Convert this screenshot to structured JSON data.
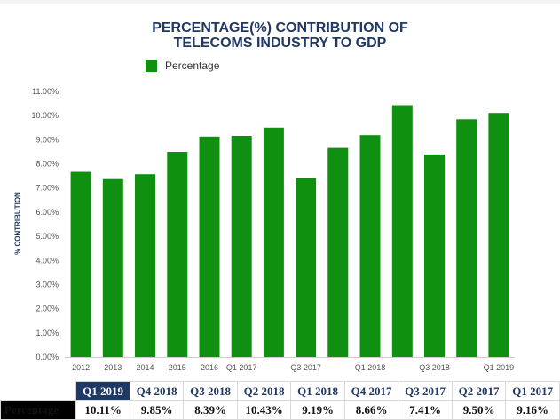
{
  "chart_data": {
    "type": "bar",
    "title_line1": "PERCENTAGE(%) CONTRIBUTION OF",
    "title_line2": "TELECOMS INDUSTRY TO GDP",
    "ylabel": "% CONTRIBUTION",
    "xlabel": "",
    "ylim": [
      0,
      11
    ],
    "y_ticks": [
      "0.00%",
      "1.00%",
      "2.00%",
      "3.00%",
      "4.00%",
      "5.00%",
      "6.00%",
      "7.00%",
      "8.00%",
      "9.00%",
      "10.00%",
      "11.00%"
    ],
    "legend_position": "top-left",
    "grid": false,
    "categories": [
      "2012",
      "2013",
      "2014",
      "2015",
      "2016",
      "Q1 2017",
      "Q2 2017",
      "Q3 2017",
      "Q4 2017",
      "Q1 2018",
      "Q2 2018",
      "Q3 2018",
      "Q4 2018",
      "Q1 2019"
    ],
    "x_tick_labels": [
      "2012",
      "2013",
      "2014",
      "2015",
      "2016",
      "Q1 2017",
      "",
      "Q3 2017",
      "",
      "Q1 2018",
      "",
      "Q3 2018",
      "",
      "Q1 2019"
    ],
    "series": [
      {
        "name": "Percentage",
        "color": "#109010",
        "values": [
          7.67,
          7.37,
          7.57,
          8.5,
          9.13,
          9.16,
          9.5,
          7.41,
          8.66,
          9.19,
          10.43,
          8.39,
          9.85,
          10.11
        ]
      }
    ]
  },
  "summary_table": {
    "row_label": "Percentage",
    "headers": [
      "Q1 2019",
      "Q4 2018",
      "Q3 2018",
      "Q2 2018",
      "Q1 2018",
      "Q4 2017",
      "Q3 2017",
      "Q2 2017",
      "Q1 2017"
    ],
    "values": [
      "10.11%",
      "9.85%",
      "8.39%",
      "10.43%",
      "9.19%",
      "8.66%",
      "7.41%",
      "9.50%",
      "9.16%"
    ]
  }
}
